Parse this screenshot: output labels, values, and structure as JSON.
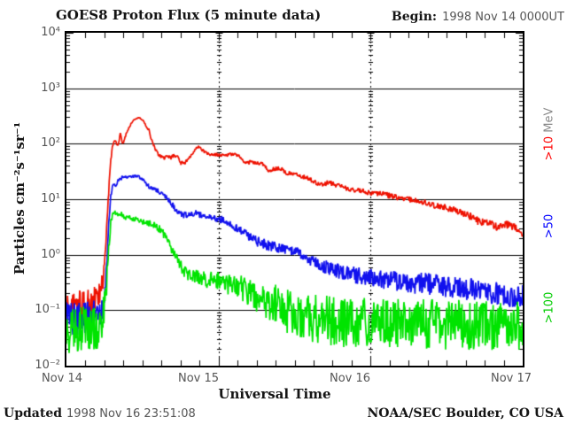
{
  "header": {
    "title": "GOES8 Proton Flux (5 minute data)",
    "begin_label": "Begin:",
    "begin_value": "1998 Nov 14 0000UT"
  },
  "footer": {
    "updated_label": "Updated",
    "updated_value": "1998 Nov 16 23:51:08",
    "source": "NOAA/SEC Boulder, CO USA"
  },
  "right_labels": [
    {
      "value": ">10",
      "unit": " MeV",
      "color": "#ff0000"
    },
    {
      "value": ">50",
      "unit": "",
      "color": "#0000ff"
    },
    {
      "value": ">100",
      "unit": "",
      "color": "#00cc00"
    }
  ],
  "chart_data": {
    "type": "line",
    "title": "GOES8 Proton Flux (5 minute data)",
    "xlabel": "Universal Time",
    "ylabel": "Particles cm⁻²s⁻¹sr⁻¹",
    "x_tick_labels": [
      "Nov 14",
      "Nov 15",
      "Nov 16",
      "Nov 17"
    ],
    "y_tick_labels": [
      "10⁴",
      "10³",
      "10²",
      "10¹",
      "10⁰",
      "10⁻¹",
      "10⁻²"
    ],
    "y_scale": "log10",
    "ylim_log10": [
      -2,
      4
    ],
    "x_range_hours": [
      0,
      72
    ],
    "x_minor_tick_hours": 3,
    "day_gridline_hours": [
      24,
      48
    ],
    "grid": {
      "horizontal_decade_lines": true,
      "vertical_dotted_day_lines": true
    },
    "legend_position": "right-rotated",
    "series": [
      {
        "name": ">10 MeV",
        "color": "#ee1100",
        "points": [
          [
            0,
            0.12,
            0.28
          ],
          [
            1,
            0.11,
            0.28
          ],
          [
            2,
            0.13,
            0.28
          ],
          [
            3,
            0.12,
            0.28
          ],
          [
            4,
            0.14,
            0.26
          ],
          [
            5,
            0.16,
            0.25
          ],
          [
            5.7,
            0.3,
            0.2
          ],
          [
            6.1,
            0.9,
            0.12
          ],
          [
            6.5,
            6,
            0.07
          ],
          [
            6.9,
            40,
            0.04
          ],
          [
            7.2,
            80,
            0.03
          ],
          [
            7.4,
            105,
            0.03
          ],
          [
            7.7,
            120,
            0.025
          ],
          [
            8.1,
            88,
            0.03
          ],
          [
            8.5,
            150,
            0.02
          ],
          [
            8.9,
            97,
            0.03
          ],
          [
            9.5,
            160,
            0.02
          ],
          [
            10,
            210,
            0.02
          ],
          [
            10.5,
            260,
            0.015
          ],
          [
            11,
            285,
            0.015
          ],
          [
            11.4,
            295,
            0.015
          ],
          [
            11.8,
            280,
            0.015
          ],
          [
            12.2,
            255,
            0.015
          ],
          [
            12.6,
            205,
            0.02
          ],
          [
            13,
            180,
            0.02
          ],
          [
            13.4,
            120,
            0.025
          ],
          [
            13.8,
            90,
            0.03
          ],
          [
            14.4,
            65,
            0.03
          ],
          [
            15,
            58,
            0.03
          ],
          [
            15.5,
            55,
            0.035
          ],
          [
            16,
            60,
            0.03
          ],
          [
            16.5,
            56,
            0.035
          ],
          [
            17,
            62,
            0.03
          ],
          [
            17.6,
            57,
            0.035
          ],
          [
            18.1,
            45,
            0.04
          ],
          [
            18.6,
            44,
            0.04
          ],
          [
            19.2,
            52,
            0.035
          ],
          [
            19.8,
            66,
            0.03
          ],
          [
            20.4,
            82,
            0.03
          ],
          [
            20.9,
            88,
            0.025
          ],
          [
            21.4,
            78,
            0.03
          ],
          [
            22,
            68,
            0.03
          ],
          [
            22.6,
            63,
            0.03
          ],
          [
            23.3,
            64,
            0.03
          ],
          [
            24,
            63,
            0.03
          ],
          [
            25,
            62,
            0.03
          ],
          [
            26,
            64,
            0.03
          ],
          [
            26.7,
            66,
            0.03
          ],
          [
            27.3,
            58,
            0.03
          ],
          [
            28.2,
            44,
            0.035
          ],
          [
            29.1,
            47,
            0.035
          ],
          [
            30,
            45,
            0.035
          ],
          [
            31,
            43,
            0.035
          ],
          [
            31.9,
            33,
            0.04
          ],
          [
            32.8,
            35,
            0.04
          ],
          [
            33.8,
            36,
            0.04
          ],
          [
            34.7,
            30,
            0.04
          ],
          [
            35.6,
            29,
            0.04
          ],
          [
            36.6,
            28,
            0.04
          ],
          [
            37.5,
            25,
            0.045
          ],
          [
            38.4,
            23,
            0.045
          ],
          [
            39.4,
            20,
            0.05
          ],
          [
            40.3,
            19,
            0.05
          ],
          [
            41.2,
            19.5,
            0.05
          ],
          [
            42.2,
            19,
            0.05
          ],
          [
            43.1,
            17,
            0.05
          ],
          [
            44,
            16,
            0.05
          ],
          [
            45,
            15,
            0.05
          ],
          [
            45.9,
            14.5,
            0.05
          ],
          [
            46.9,
            13.8,
            0.05
          ],
          [
            47.8,
            13.3,
            0.05
          ],
          [
            49.6,
            12.5,
            0.05
          ],
          [
            52,
            11,
            0.055
          ],
          [
            54,
            10,
            0.055
          ],
          [
            56,
            9,
            0.06
          ],
          [
            58,
            8,
            0.06
          ],
          [
            60,
            7,
            0.06
          ],
          [
            62,
            6,
            0.065
          ],
          [
            64,
            4.8,
            0.07
          ],
          [
            65,
            4.0,
            0.07
          ],
          [
            66,
            3.8,
            0.07
          ],
          [
            67,
            3.6,
            0.07
          ],
          [
            68,
            3.2,
            0.075
          ],
          [
            69,
            3.6,
            0.07
          ],
          [
            70,
            3.4,
            0.07
          ],
          [
            71,
            3.0,
            0.075
          ],
          [
            71.6,
            2.8,
            0.075
          ],
          [
            72,
            2.0,
            0.06
          ]
        ]
      },
      {
        "name": ">50",
        "color": "#1111ee",
        "points": [
          [
            0,
            0.07,
            0.3
          ],
          [
            2,
            0.068,
            0.3
          ],
          [
            4,
            0.075,
            0.3
          ],
          [
            5.5,
            0.09,
            0.28
          ],
          [
            6.2,
            0.3,
            0.18
          ],
          [
            6.6,
            2.5,
            0.08
          ],
          [
            7,
            12,
            0.05
          ],
          [
            7.4,
            19,
            0.04
          ],
          [
            7.8,
            17,
            0.05
          ],
          [
            8.2,
            22,
            0.04
          ],
          [
            8.7,
            24,
            0.035
          ],
          [
            9.5,
            25,
            0.03
          ],
          [
            10.3,
            26,
            0.03
          ],
          [
            11,
            26,
            0.03
          ],
          [
            11.9,
            23,
            0.035
          ],
          [
            12.9,
            17.5,
            0.04
          ],
          [
            14.3,
            14.6,
            0.045
          ],
          [
            15.7,
            10.9,
            0.05
          ],
          [
            16.5,
            8.4,
            0.05
          ],
          [
            17.5,
            5.8,
            0.06
          ],
          [
            18.5,
            5.2,
            0.06
          ],
          [
            19.3,
            5.4,
            0.06
          ],
          [
            20.3,
            5.8,
            0.06
          ],
          [
            21.2,
            5.2,
            0.06
          ],
          [
            22.6,
            4.8,
            0.06
          ],
          [
            24,
            4.4,
            0.065
          ],
          [
            25,
            4.2,
            0.065
          ],
          [
            26.3,
            3.3,
            0.07
          ],
          [
            28.2,
            2.4,
            0.08
          ],
          [
            30,
            1.75,
            0.09
          ],
          [
            31.9,
            1.45,
            0.1
          ],
          [
            33.8,
            1.33,
            0.1
          ],
          [
            35.6,
            1.18,
            0.1
          ],
          [
            37.5,
            0.92,
            0.11
          ],
          [
            39.3,
            0.72,
            0.12
          ],
          [
            41.2,
            0.59,
            0.13
          ],
          [
            43,
            0.49,
            0.14
          ],
          [
            45,
            0.44,
            0.15
          ],
          [
            46.8,
            0.4,
            0.16
          ],
          [
            49.2,
            0.37,
            0.17
          ],
          [
            52,
            0.34,
            0.18
          ],
          [
            54,
            0.32,
            0.19
          ],
          [
            56,
            0.3,
            0.2
          ],
          [
            58,
            0.29,
            0.2
          ],
          [
            60,
            0.27,
            0.2
          ],
          [
            62,
            0.25,
            0.2
          ],
          [
            64,
            0.24,
            0.21
          ],
          [
            66,
            0.22,
            0.21
          ],
          [
            68,
            0.2,
            0.21
          ],
          [
            70,
            0.18,
            0.21
          ],
          [
            71,
            0.17,
            0.21
          ],
          [
            72,
            0.19,
            0.2
          ]
        ]
      },
      {
        "name": ">100",
        "color": "#00e400",
        "points": [
          [
            0,
            0.04,
            0.45
          ],
          [
            2,
            0.04,
            0.45
          ],
          [
            4,
            0.045,
            0.45
          ],
          [
            5.5,
            0.055,
            0.4
          ],
          [
            6.2,
            0.15,
            0.25
          ],
          [
            6.6,
            1.0,
            0.12
          ],
          [
            7,
            4.0,
            0.06
          ],
          [
            7.3,
            5.4,
            0.05
          ],
          [
            7.7,
            5.8,
            0.04
          ],
          [
            8.1,
            5.0,
            0.05
          ],
          [
            8.5,
            5.6,
            0.04
          ],
          [
            9.1,
            4.8,
            0.05
          ],
          [
            9.8,
            4.6,
            0.05
          ],
          [
            10.5,
            4.5,
            0.05
          ],
          [
            11.3,
            4.2,
            0.05
          ],
          [
            11.9,
            4.0,
            0.05
          ],
          [
            12.6,
            3.8,
            0.05
          ],
          [
            13.3,
            3.6,
            0.06
          ],
          [
            14,
            3.3,
            0.06
          ],
          [
            14.7,
            2.9,
            0.07
          ],
          [
            15.4,
            2.3,
            0.08
          ],
          [
            16.1,
            1.6,
            0.09
          ],
          [
            16.8,
            1.15,
            0.1
          ],
          [
            17.5,
            0.8,
            0.11
          ],
          [
            18.2,
            0.6,
            0.12
          ],
          [
            18.9,
            0.47,
            0.13
          ],
          [
            19.6,
            0.42,
            0.13
          ],
          [
            20.3,
            0.4,
            0.14
          ],
          [
            21,
            0.38,
            0.14
          ],
          [
            22,
            0.36,
            0.15
          ],
          [
            23,
            0.35,
            0.16
          ],
          [
            24,
            0.33,
            0.17
          ],
          [
            25,
            0.3,
            0.18
          ],
          [
            26,
            0.28,
            0.2
          ],
          [
            27,
            0.26,
            0.22
          ],
          [
            28,
            0.24,
            0.24
          ],
          [
            29,
            0.21,
            0.26
          ],
          [
            30,
            0.18,
            0.3
          ],
          [
            31,
            0.16,
            0.33
          ],
          [
            32,
            0.14,
            0.36
          ],
          [
            33,
            0.12,
            0.4
          ],
          [
            34,
            0.1,
            0.43
          ],
          [
            35,
            0.09,
            0.45
          ],
          [
            36,
            0.085,
            0.45
          ],
          [
            38,
            0.075,
            0.45
          ],
          [
            40,
            0.07,
            0.45
          ],
          [
            42,
            0.065,
            0.45
          ],
          [
            44,
            0.06,
            0.45
          ],
          [
            46,
            0.06,
            0.45
          ],
          [
            48,
            0.06,
            0.45
          ],
          [
            50,
            0.058,
            0.45
          ],
          [
            52,
            0.057,
            0.45
          ],
          [
            54,
            0.056,
            0.45
          ],
          [
            56,
            0.058,
            0.45
          ],
          [
            58,
            0.056,
            0.45
          ],
          [
            60,
            0.055,
            0.45
          ],
          [
            62,
            0.055,
            0.45
          ],
          [
            64,
            0.054,
            0.45
          ],
          [
            66,
            0.053,
            0.45
          ],
          [
            68,
            0.052,
            0.45
          ],
          [
            70,
            0.05,
            0.45
          ],
          [
            72,
            0.055,
            0.45
          ]
        ]
      }
    ]
  }
}
